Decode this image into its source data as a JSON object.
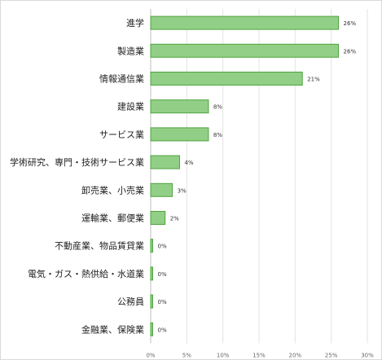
{
  "chart_data": {
    "type": "bar",
    "orientation": "horizontal",
    "categories": [
      "進学",
      "製造業",
      "情報通信業",
      "建設業",
      "サービス業",
      "学術研究、専門・技術サービス業",
      "卸売業、小売業",
      "運輸業、郵便業",
      "不動産業、物品賃貸業",
      "電気・ガス・熱供給・水道業",
      "公務員",
      "金融業、保険業"
    ],
    "values": [
      26,
      26,
      21,
      8,
      8,
      4,
      3,
      2,
      0,
      0,
      0,
      0
    ],
    "value_labels": [
      "26%",
      "26%",
      "21%",
      "8%",
      "8%",
      "4%",
      "3%",
      "2%",
      "0%",
      "0%",
      "0%",
      "0%"
    ],
    "xlim": [
      0,
      30
    ],
    "x_ticks": [
      0,
      5,
      10,
      15,
      20,
      25,
      30
    ],
    "x_tick_labels": [
      "0%",
      "5%",
      "10%",
      "15%",
      "20%",
      "25%",
      "30%"
    ],
    "grid": true,
    "bar_color": "#92cf86",
    "bar_edge_color": "#4ea33e",
    "legend": "none"
  }
}
